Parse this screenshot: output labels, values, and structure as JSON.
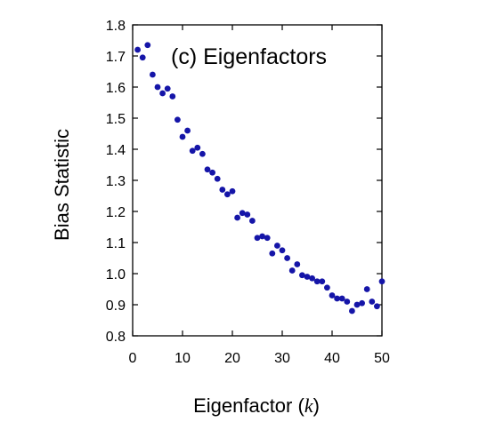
{
  "chart_data": {
    "type": "scatter",
    "title": "(c) Eigenfactors",
    "xlabel_parts": {
      "prefix": "Eigenfactor (",
      "variable": "k",
      "suffix": ")"
    },
    "ylabel": "Bias Statistic",
    "xlim": [
      0,
      50
    ],
    "ylim": [
      0.8,
      1.8
    ],
    "x_ticks": [
      0,
      10,
      20,
      30,
      40,
      50
    ],
    "y_ticks": [
      0.8,
      0.9,
      1.0,
      1.1,
      1.2,
      1.3,
      1.4,
      1.5,
      1.6,
      1.7,
      1.8
    ],
    "y_tick_labels": [
      "0.8",
      "0.9",
      "1.0",
      "1.1",
      "1.2",
      "1.3",
      "1.4",
      "1.5",
      "1.6",
      "1.7",
      "1.8"
    ],
    "grid": false,
    "marker_color": "#1515a8",
    "series": [
      {
        "x": [
          1,
          2,
          3,
          4,
          5,
          6,
          7,
          8,
          9,
          10,
          11,
          12,
          13,
          14,
          15,
          16,
          17,
          18,
          19,
          20,
          21,
          22,
          23,
          24,
          25,
          26,
          27,
          28,
          29,
          30,
          31,
          32,
          33,
          34,
          35,
          36,
          37,
          38,
          39,
          40,
          41,
          42,
          43,
          44,
          45,
          46,
          47,
          48,
          49,
          50
        ],
        "y": [
          1.72,
          1.695,
          1.735,
          1.64,
          1.6,
          1.58,
          1.595,
          1.57,
          1.495,
          1.44,
          1.46,
          1.395,
          1.405,
          1.385,
          1.335,
          1.325,
          1.305,
          1.27,
          1.255,
          1.265,
          1.18,
          1.195,
          1.19,
          1.17,
          1.115,
          1.12,
          1.115,
          1.065,
          1.09,
          1.075,
          1.05,
          1.01,
          1.03,
          0.995,
          0.99,
          0.985,
          0.975,
          0.975,
          0.955,
          0.93,
          0.92,
          0.92,
          0.91,
          0.88,
          0.9,
          0.905,
          0.95,
          0.91,
          0.895,
          0.975
        ]
      }
    ]
  }
}
